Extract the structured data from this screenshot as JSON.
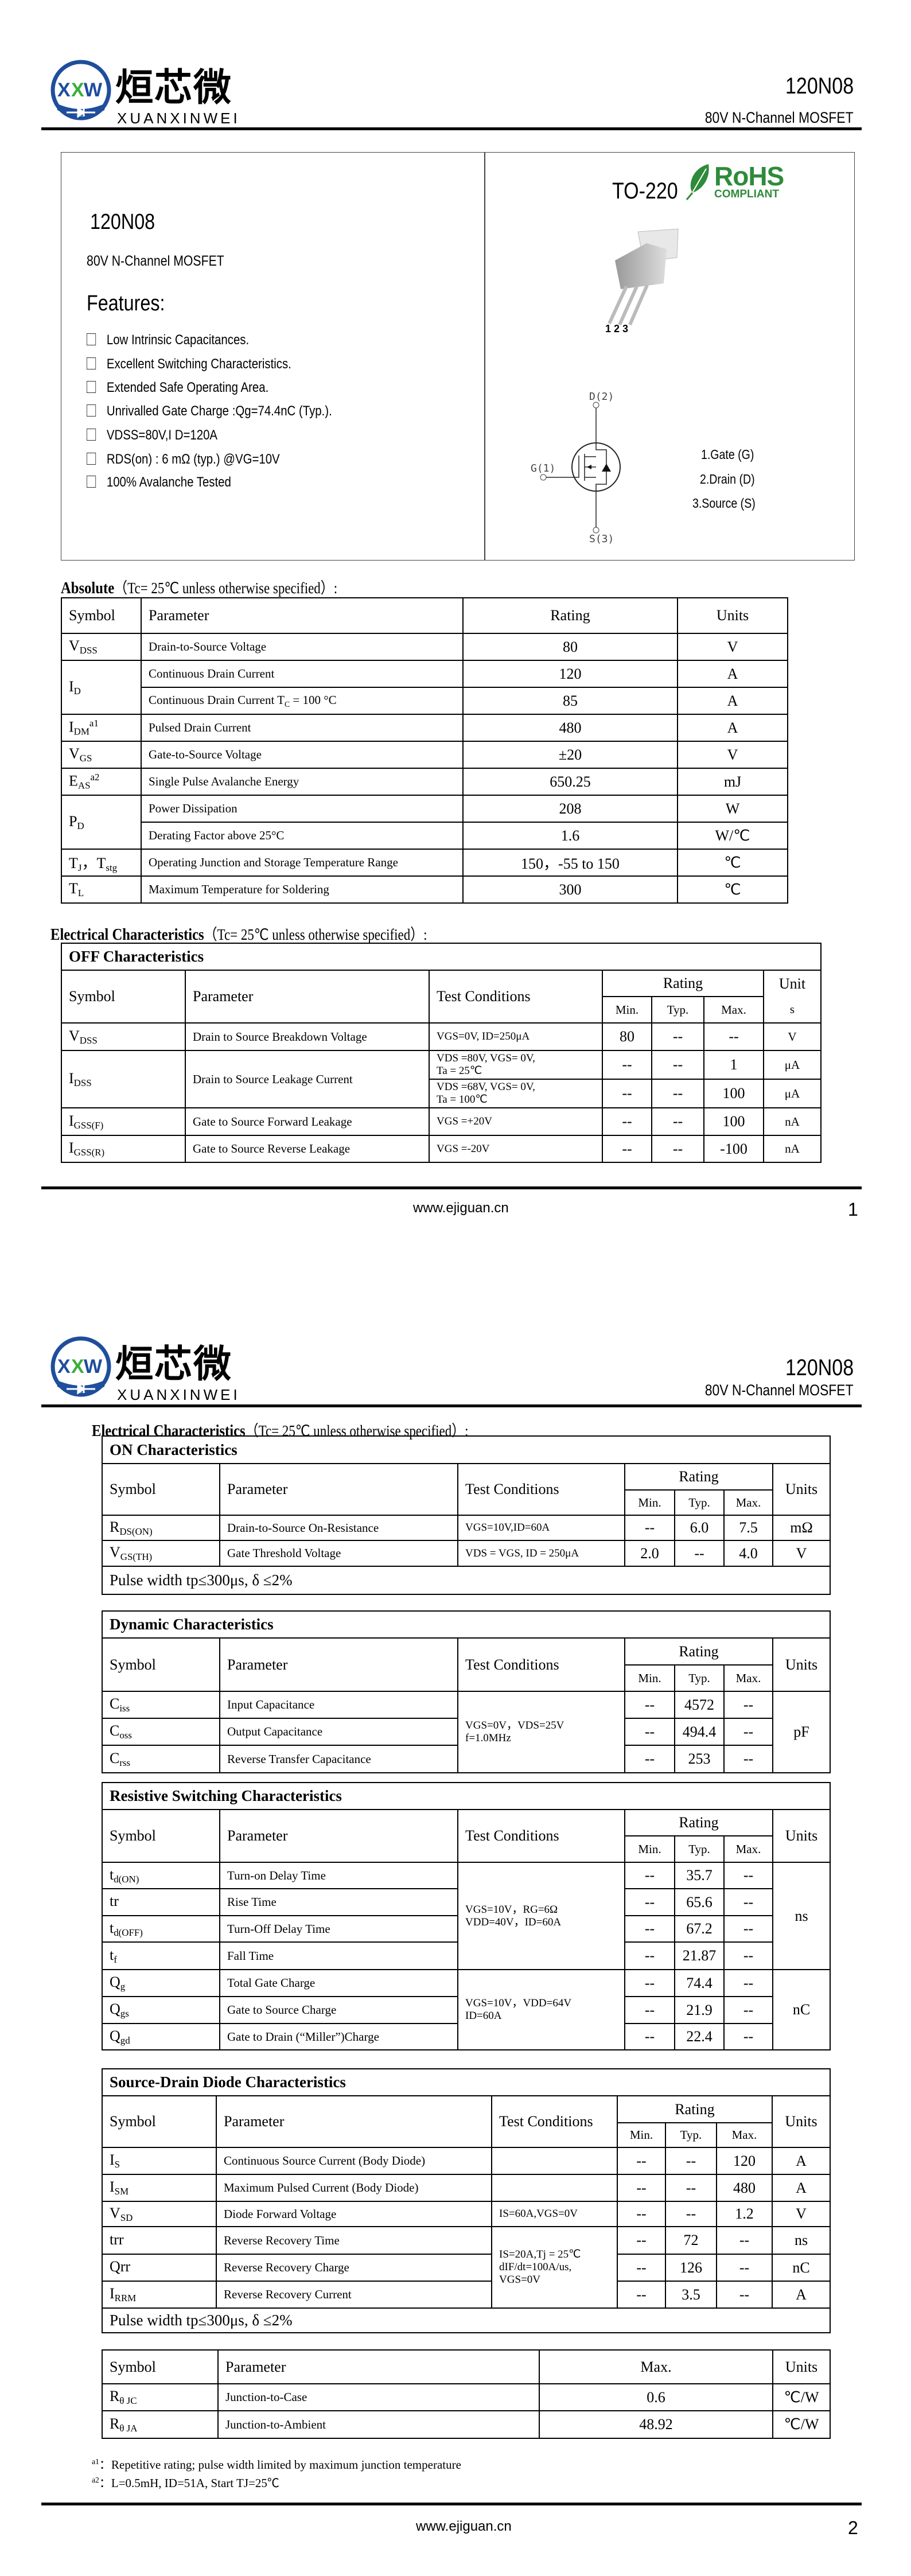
{
  "header": {
    "logo_mark": "XXW",
    "logo_cn": "烜芯微",
    "logo_en": "XUANXINWEI",
    "part": "120N08",
    "subtitle": "80V N-Channel MOSFET",
    "brand_blue": "#1f4e9c",
    "brand_green": "#3aae3a"
  },
  "intro": {
    "part": "120N08",
    "desc": "80V N-Channel MOSFET",
    "features_title": "Features:",
    "features": [
      "Low Intrinsic Capacitances.",
      "Excellent Switching Characteristics.",
      "Extended Safe Operating Area.",
      "Unrivalled Gate Charge :Qg=74.4nC (Typ.).",
      "VDSS=80V,I D=120A",
      "RDS(on) : 6 mΩ (typ.) @VG=10V",
      "100% Avalanche Tested"
    ],
    "package": "TO-220",
    "rohs": {
      "title": "RoHS",
      "sub": "COMPLIANT",
      "color": "#2e8b3a"
    },
    "pin_numbers": "1 2 3",
    "schematic": {
      "d": "D(2)",
      "g": "G(1)",
      "s": "S(3)"
    },
    "pins": [
      "1.Gate (G)",
      "2.Drain (D)",
      "3.Source (S)"
    ]
  },
  "absolute": {
    "title": "Absolute",
    "cond": "（Tc= 25℃  unless otherwise specified）:",
    "headers": {
      "symbol": "Symbol",
      "parameter": "Parameter",
      "rating": "Rating",
      "units": "Units"
    },
    "rows": [
      {
        "sym": "V",
        "sub": "DSS",
        "param": "Drain-to-Source Voltage",
        "rating": "80",
        "unit": "V"
      },
      {
        "sym": "I",
        "sub": "D",
        "param": "Continuous Drain Current",
        "rating": "120",
        "unit": "A"
      },
      {
        "param": "Continuous Drain Current T",
        "param_sub": "C",
        "param_tail": " = 100 °C",
        "rating": "85",
        "unit": "A"
      },
      {
        "sym": "I",
        "sub": "DM",
        "sup": "a1",
        "param": "Pulsed Drain Current",
        "rating": "480",
        "unit": "A"
      },
      {
        "sym": "V",
        "sub": "GS",
        "param": "Gate-to-Source Voltage",
        "rating": "±20",
        "unit": "V"
      },
      {
        "sym": "E",
        "sub": "AS",
        "sup": "a2",
        "param": "Single Pulse Avalanche Energy",
        "rating": "650.25",
        "unit": "mJ"
      },
      {
        "sym": "P",
        "sub": "D",
        "param": "Power Dissipation",
        "rating": "208",
        "unit": "W"
      },
      {
        "param": "Derating Factor above 25°C",
        "rating": "1.6",
        "unit": "W/℃"
      },
      {
        "sym": "T",
        "sub": "J",
        "sym2": "，T",
        "sub2": "stg",
        "param": "Operating Junction and Storage Temperature Range",
        "rating": "150，-55 to 150",
        "unit": "℃"
      },
      {
        "sym": "T",
        "sub": "L",
        "param": "Maximum Temperature for Soldering",
        "rating": "300",
        "unit": "℃"
      }
    ]
  },
  "electrical_title": "Electrical Characteristics",
  "electrical_cond": "（Tc= 25℃  unless otherwise specified）:",
  "common_headers": {
    "symbol": "Symbol",
    "parameter": "Parameter",
    "test": "Test Conditions",
    "rating": "Rating",
    "min": "Min.",
    "typ": "Typ.",
    "max": "Max.",
    "units": "Units",
    "unit_a": "Unit",
    "unit_b": "s"
  },
  "off": {
    "title": "OFF Characteristics",
    "rows": [
      {
        "sym": "V",
        "sub": "DSS",
        "param": "Drain to Source Breakdown Voltage",
        "cond": "VGS=0V, ID=250μA",
        "min": "80",
        "typ": "--",
        "max": "--",
        "unit": "V"
      },
      {
        "sym": "I",
        "sub": "DSS",
        "param": "Drain to Source Leakage Current",
        "cond": "VDS =80V, VGS= 0V,",
        "cond2": "Ta = 25℃",
        "min": "--",
        "typ": "--",
        "max": "1",
        "unit": "μA"
      },
      {
        "cond": "VDS =68V, VGS= 0V,",
        "cond2": "Ta = 100℃",
        "min": "--",
        "typ": "--",
        "max": "100",
        "unit": "μA"
      },
      {
        "sym": "I",
        "sub": "GSS(F)",
        "param": "Gate to Source Forward Leakage",
        "cond": "VGS =+20V",
        "min": "--",
        "typ": "--",
        "max": "100",
        "unit": "nA"
      },
      {
        "sym": "I",
        "sub": "GSS(R)",
        "param": "Gate to Source Reverse Leakage",
        "cond": "VGS =-20V",
        "min": "--",
        "typ": "--",
        "max": "-100",
        "unit": "nA"
      }
    ]
  },
  "on": {
    "title": "ON Characteristics",
    "rows": [
      {
        "sym": "R",
        "sub": "DS(ON)",
        "param": "Drain-to-Source On-Resistance",
        "cond": "VGS=10V,ID=60A",
        "min": "--",
        "typ": "6.0",
        "max": "7.5",
        "unit": "mΩ"
      },
      {
        "sym": "V",
        "sub": "GS(TH)",
        "param": "Gate Threshold Voltage",
        "cond": "VDS = VGS, ID = 250μA",
        "min": "2.0",
        "typ": "--",
        "max": "4.0",
        "unit": "V"
      }
    ],
    "note": "Pulse width tp≤300μs, δ ≤2%"
  },
  "dynamic": {
    "title": "Dynamic Characteristics",
    "cond": "VGS=0V，VDS=25V",
    "cond2": "f=1.0MHz",
    "unit": "pF",
    "rows": [
      {
        "sym": "C",
        "sub": "iss",
        "param": "Input Capacitance",
        "min": "--",
        "typ": "4572",
        "max": "--"
      },
      {
        "sym": "C",
        "sub": "oss",
        "param": "Output Capacitance",
        "min": "--",
        "typ": "494.4",
        "max": "--"
      },
      {
        "sym": "C",
        "sub": "rss",
        "param": "Reverse Transfer Capacitance",
        "min": "--",
        "typ": "253",
        "max": "--"
      }
    ]
  },
  "switching": {
    "title": "Resistive Switching Characteristics",
    "group1": {
      "cond": "VGS=10V，RG=6Ω",
      "cond2": "VDD=40V，ID=60A",
      "unit": "ns"
    },
    "group2": {
      "cond": "VGS=10V，VDD=64V",
      "cond2": "ID=60A",
      "unit": "nC"
    },
    "rows": [
      {
        "sym": "t",
        "sub": "d(ON)",
        "param": "Turn-on Delay Time",
        "min": "--",
        "typ": "35.7",
        "max": "--"
      },
      {
        "sym": "tr",
        "sub": "",
        "param": "Rise Time",
        "min": "--",
        "typ": "65.6",
        "max": "--"
      },
      {
        "sym": "t",
        "sub": "d(OFF)",
        "param": "Turn-Off Delay Time",
        "min": "--",
        "typ": "67.2",
        "max": "--"
      },
      {
        "sym": "t",
        "sub": "f",
        "param": "Fall Time",
        "min": "--",
        "typ": "21.87",
        "max": "--"
      },
      {
        "sym": "Q",
        "sub": "g",
        "param": "Total Gate Charge",
        "min": "--",
        "typ": "74.4",
        "max": "--"
      },
      {
        "sym": "Q",
        "sub": "gs",
        "param": "Gate to Source Charge",
        "min": "--",
        "typ": "21.9",
        "max": "--"
      },
      {
        "sym": "Q",
        "sub": "gd",
        "param": "Gate to Drain (“Miller”)Charge",
        "min": "--",
        "typ": "22.4",
        "max": "--"
      }
    ]
  },
  "diode": {
    "title": "Source-Drain Diode Characteristics",
    "rr_cond": [
      "IS=20A,Tj = 25℃",
      "dIF/dt=100A/us,",
      "VGS=0V"
    ],
    "rows": [
      {
        "sym": "I",
        "sub": "S",
        "param": "Continuous Source Current (Body Diode)",
        "cond": "",
        "min": "--",
        "typ": "--",
        "max": "120",
        "unit": "A"
      },
      {
        "sym": "I",
        "sub": "SM",
        "param": "Maximum Pulsed Current (Body Diode)",
        "cond": "",
        "min": "--",
        "typ": "--",
        "max": "480",
        "unit": "A"
      },
      {
        "sym": "V",
        "sub": "SD",
        "param": "Diode Forward Voltage",
        "cond": "IS=60A,VGS=0V",
        "min": "--",
        "typ": "--",
        "max": "1.2",
        "unit": "V"
      },
      {
        "sym": "trr",
        "sub": "",
        "param": "Reverse Recovery Time",
        "min": "--",
        "typ": "72",
        "max": "--",
        "unit": "ns"
      },
      {
        "sym": "Qrr",
        "sub": "",
        "param": "Reverse Recovery Charge",
        "min": "--",
        "typ": "126",
        "max": "--",
        "unit": "nC"
      },
      {
        "sym": "I",
        "sub": "RRM",
        "param": "Reverse Recovery Current",
        "min": "--",
        "typ": "3.5",
        "max": "--",
        "unit": "A"
      }
    ],
    "note": "Pulse width tp≤300μs, δ ≤2%"
  },
  "thermal": {
    "headers": {
      "symbol": "Symbol",
      "parameter": "Parameter",
      "max": "Max.",
      "units": "Units"
    },
    "rows": [
      {
        "sym": "R",
        "sub": "θ JC",
        "param": "Junction-to-Case",
        "max": "0.6",
        "unit": "℃/W"
      },
      {
        "sym": "R",
        "sub": "θ JA",
        "param": "Junction-to-Ambient",
        "max": "48.92",
        "unit": "℃/W"
      }
    ]
  },
  "footnotes": [
    {
      "mark": "a1",
      "text": "：Repetitive rating; pulse width limited by maximum junction temperature"
    },
    {
      "mark": "a2",
      "text": "：L=0.5mH, ID=51A, Start TJ=25℃"
    }
  ],
  "footer": {
    "url": "www.ejiguan.cn",
    "page1": "1",
    "page2": "2"
  }
}
